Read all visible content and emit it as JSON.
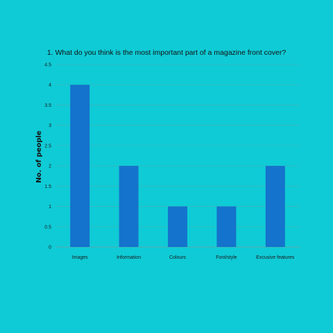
{
  "colors": {
    "background": "#0fcbd6",
    "bar": "#1473cc",
    "gridline": "#3ab6b9",
    "axis": "#5aa7ad"
  },
  "chart_data": {
    "type": "bar",
    "title": "1. What do you think is the most important part of a magazine front cover?",
    "xlabel": "",
    "ylabel": "No. of people",
    "categories": [
      "Images",
      "Information",
      "Colours",
      "Font/style",
      "Excusive features"
    ],
    "values": [
      4,
      2,
      1,
      1,
      2
    ],
    "ylim": [
      0,
      4.5
    ],
    "yticks": [
      "0",
      "0.5",
      "1",
      "1.5",
      "2",
      "2.5",
      "3",
      "3.5",
      "4",
      "4.5"
    ],
    "grid": true,
    "legend": "none"
  }
}
